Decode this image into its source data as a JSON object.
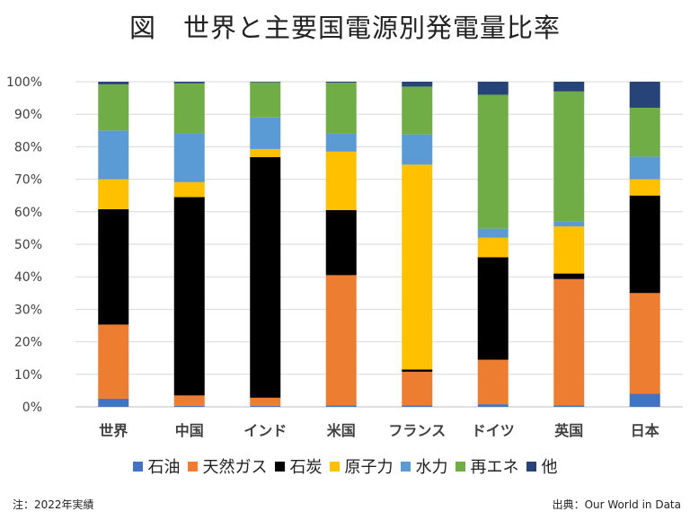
{
  "title": "図　世界と主要国電源別発電量比率",
  "note": "注：2022年実績",
  "source": "出典：Our World in Data",
  "chart_data": {
    "type": "bar",
    "stacked": true,
    "percent_axis": true,
    "ylim": [
      0,
      100
    ],
    "yticks": [
      "0%",
      "10%",
      "20%",
      "30%",
      "40%",
      "50%",
      "60%",
      "70%",
      "80%",
      "90%",
      "100%"
    ],
    "categories": [
      "世界",
      "中国",
      "インド",
      "米国",
      "フランス",
      "ドイツ",
      "英国",
      "日本"
    ],
    "series": [
      {
        "name": "石油",
        "color": "#4472C4",
        "values": [
          2.5,
          0.3,
          0.3,
          0.5,
          0.5,
          0.8,
          0.5,
          4
        ]
      },
      {
        "name": "天然ガス",
        "color": "#ED7D31",
        "values": [
          22.8,
          3.2,
          2.5,
          40,
          10.3,
          13.7,
          38.8,
          31
        ]
      },
      {
        "name": "石炭",
        "color": "#000000",
        "values": [
          35.5,
          61,
          74,
          20,
          0.7,
          31.5,
          1.7,
          30
        ]
      },
      {
        "name": "原子力",
        "color": "#FFC000",
        "values": [
          9.2,
          4.6,
          2.5,
          18,
          63,
          6,
          14.5,
          5
        ]
      },
      {
        "name": "水力",
        "color": "#5B9BD5",
        "values": [
          15,
          15,
          9.7,
          5.5,
          9.3,
          2.8,
          1.5,
          7
        ]
      },
      {
        "name": "再エネ",
        "color": "#70AD47",
        "values": [
          14.2,
          15.4,
          10.8,
          15.7,
          14.7,
          41.2,
          40,
          15
        ]
      },
      {
        "name": "他",
        "color": "#264478",
        "values": [
          0.8,
          0.5,
          0.2,
          0.3,
          1.5,
          4,
          3,
          8
        ]
      }
    ],
    "legend_position": "bottom",
    "grid": true
  }
}
